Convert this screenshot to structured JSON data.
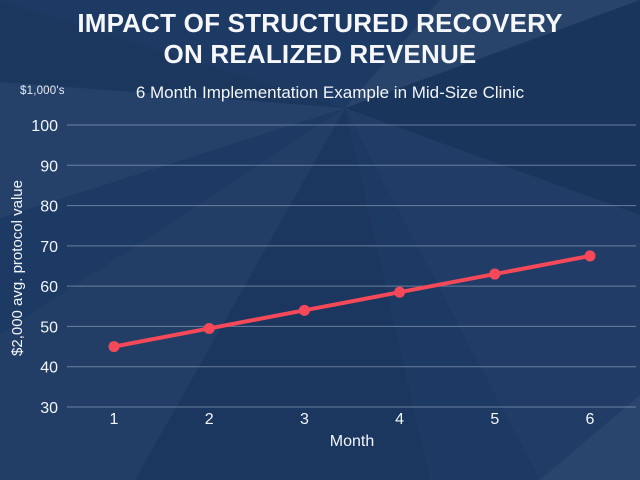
{
  "header": {
    "title": "IMPACT OF STRUCTURED RECOVERY ON REALIZED REVENUE",
    "subtitle": "6 Month Implementation Example in Mid-Size Clinic",
    "unit_note": "$1,000's"
  },
  "chart_data": {
    "type": "line",
    "title": "IMPACT OF STRUCTURED RECOVERY ON REALIZED REVENUE",
    "subtitle": "6 Month Implementation Example in Mid-Size Clinic",
    "unit_note": "$1,000's",
    "x": [
      1,
      2,
      3,
      4,
      5,
      6
    ],
    "values": [
      45,
      49.5,
      54,
      58.5,
      63,
      67.5
    ],
    "xlabel": "Month",
    "ylabel": "$2,000 avg. protocol value",
    "y_ticks": [
      30,
      40,
      50,
      60,
      70,
      80,
      90,
      100
    ],
    "ylim": [
      30,
      100
    ],
    "grid": true,
    "legend_position": "none"
  },
  "colors": {
    "background": "#1d3a64",
    "line": "#f5495a",
    "marker": "#f5495a",
    "gridline": "#a9b6c9",
    "text": "#f2f5f9"
  }
}
